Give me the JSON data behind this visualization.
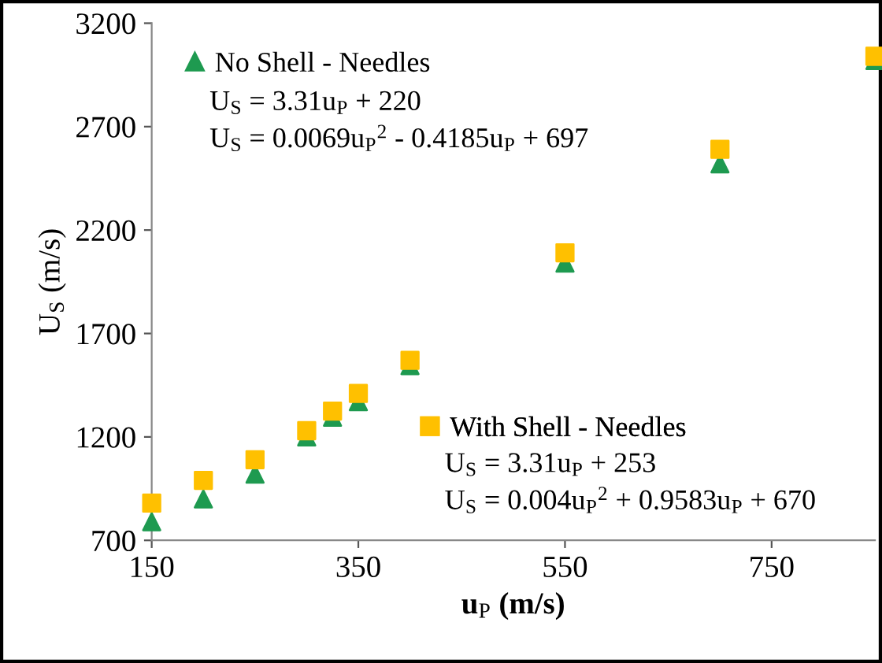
{
  "chart_data": {
    "type": "scatter",
    "xlabel": "u$_{P}$ (m/s)",
    "ylabel": "U$_{S}$ (m/s)",
    "x": [
      150,
      200,
      250,
      300,
      325,
      350,
      400,
      550,
      700,
      850
    ],
    "series": [
      {
        "name": "No Shell - Needles",
        "color": "#1e9a50",
        "marker": "triangle",
        "values": [
          790,
          900,
          1020,
          1200,
          1295,
          1370,
          1545,
          2040,
          2520,
          3020
        ]
      },
      {
        "name": "With Shell - Needles",
        "color": "#ffc000",
        "marker": "square",
        "values": [
          880,
          990,
          1090,
          1230,
          1325,
          1410,
          1570,
          2090,
          2590,
          3040
        ]
      }
    ],
    "annotations": [
      "U$_{S}$ = 3.31u$_{P}$ + 220",
      "U$_{S}$ = 0.0069u$_{P}$$^{2}$ - 0.4185u$_{P}$ + 697",
      "U$_{S}$ = 3.31u$_{P}$ + 253",
      "U$_{S}$ = 0.004u$_{P}$$^{2}$ + 0.9583u$_{P}$ + 670"
    ],
    "xlim": [
      150,
      850
    ],
    "ylim": [
      700,
      3200
    ],
    "xticks": [
      150,
      350,
      550,
      750
    ],
    "yticks": [
      700,
      1200,
      1700,
      2200,
      2700,
      3200
    ],
    "grid": false,
    "legend": "top left"
  }
}
